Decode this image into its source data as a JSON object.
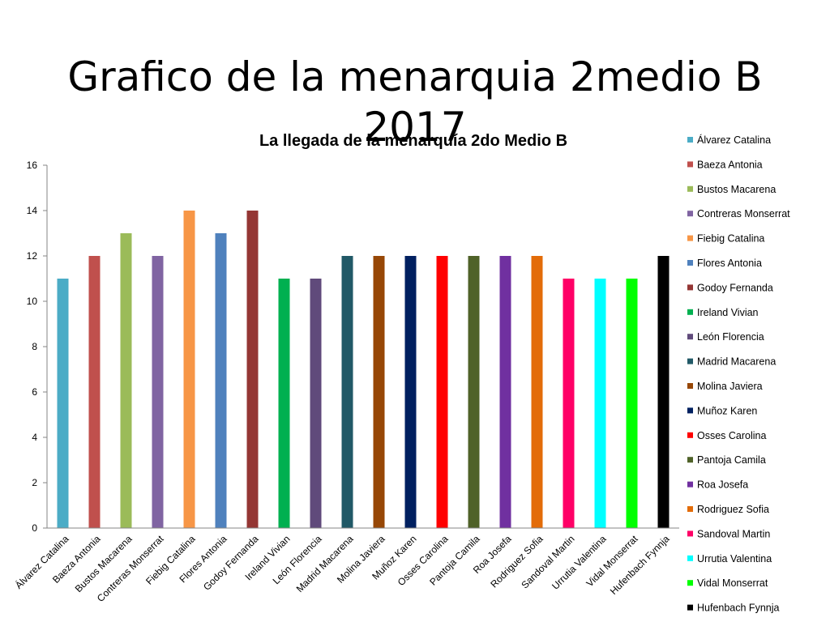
{
  "slide": {
    "title": "Grafico de la menarquia 2medio B 2017"
  },
  "chart_data": {
    "type": "bar",
    "title": "La llegada de la menarquía 2do Medio B",
    "xlabel": "",
    "ylabel": "",
    "ylim": [
      0,
      16
    ],
    "yticks": [
      0,
      2,
      4,
      6,
      8,
      10,
      12,
      14,
      16
    ],
    "grid": false,
    "legend_position": "right",
    "categories": [
      "Álvarez Catalina",
      "Baeza Antonia",
      "Bustos Macarena",
      "Contreras Monserrat",
      "Fiebig Catalina",
      "Flores Antonia",
      "Godoy Fernanda",
      "Ireland Vivian",
      "León Florencia",
      "Madrid Macarena",
      "Molina Javiera",
      "Muñoz Karen",
      "Osses Carolina",
      "Pantoja Camila",
      "Roa Josefa",
      "Rodriguez Sofia",
      "Sandoval Martin",
      "Urrutia Valentina",
      "Vidal Monserrat",
      "Hufenbach Fynnja"
    ],
    "series": [
      {
        "name": "Álvarez Catalina",
        "index": 0,
        "value": 11,
        "color": "#4BACC6"
      },
      {
        "name": "Baeza Antonia",
        "index": 1,
        "value": 12,
        "color": "#C0504D"
      },
      {
        "name": "Bustos Macarena",
        "index": 2,
        "value": 13,
        "color": "#9BBB59"
      },
      {
        "name": "Contreras Monserrat",
        "index": 3,
        "value": 12,
        "color": "#8064A2"
      },
      {
        "name": "Fiebig Catalina",
        "index": 4,
        "value": 14,
        "color": "#F79646"
      },
      {
        "name": "Flores Antonia",
        "index": 5,
        "value": 13,
        "color": "#4F81BD"
      },
      {
        "name": "Godoy Fernanda",
        "index": 6,
        "value": 14,
        "color": "#943634"
      },
      {
        "name": "Ireland Vivian",
        "index": 7,
        "value": 11,
        "color": "#00B050"
      },
      {
        "name": "León Florencia",
        "index": 8,
        "value": 11,
        "color": "#604A7B"
      },
      {
        "name": "Madrid Macarena",
        "index": 9,
        "value": 12,
        "color": "#215967"
      },
      {
        "name": "Molina Javiera",
        "index": 10,
        "value": 12,
        "color": "#974706"
      },
      {
        "name": "Muñoz Karen",
        "index": 11,
        "value": 12,
        "color": "#002060"
      },
      {
        "name": "Osses Carolina",
        "index": 12,
        "value": 12,
        "color": "#FF0000"
      },
      {
        "name": "Pantoja Camila",
        "index": 13,
        "value": 12,
        "color": "#4F6228"
      },
      {
        "name": "Roa Josefa",
        "index": 14,
        "value": 12,
        "color": "#7030A0"
      },
      {
        "name": "Rodriguez Sofia",
        "index": 15,
        "value": 12,
        "color": "#E36C09"
      },
      {
        "name": "Sandoval Martin",
        "index": 16,
        "value": 11,
        "color": "#FF0066"
      },
      {
        "name": "Urrutia Valentina",
        "index": 17,
        "value": 11,
        "color": "#00FFFF"
      },
      {
        "name": "Vidal Monserrat",
        "index": 18,
        "value": 11,
        "color": "#00FF00"
      },
      {
        "name": "Hufenbach Fynnja",
        "index": 19,
        "value": 12,
        "color": "#000000"
      }
    ]
  }
}
